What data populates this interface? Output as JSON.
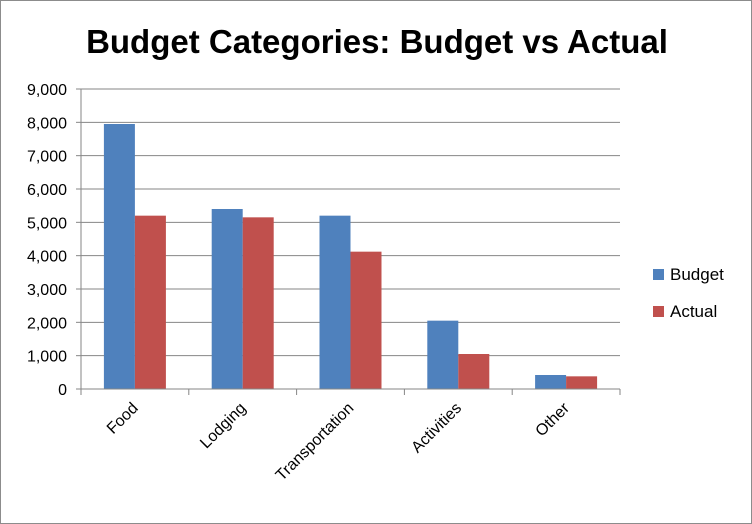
{
  "chart_data": {
    "type": "bar",
    "title": "Budget Categories: Budget vs Actual",
    "xlabel": "",
    "ylabel": "",
    "categories": [
      "Food",
      "Lodging",
      "Transportation",
      "Activities",
      "Other"
    ],
    "series": [
      {
        "name": "Budget",
        "color": "#4f81bd",
        "values": [
          7950,
          5400,
          5200,
          2050,
          420
        ]
      },
      {
        "name": "Actual",
        "color": "#c0504d",
        "values": [
          5200,
          5150,
          4120,
          1050,
          380
        ]
      }
    ],
    "ylim": [
      0,
      9000
    ],
    "yticks": [
      0,
      1000,
      2000,
      3000,
      4000,
      5000,
      6000,
      7000,
      8000,
      9000
    ],
    "ytick_labels": [
      "0",
      "1,000",
      "2,000",
      "3,000",
      "4,000",
      "5,000",
      "6,000",
      "7,000",
      "8,000",
      "9,000"
    ],
    "grid": true,
    "legend_position": "right"
  }
}
